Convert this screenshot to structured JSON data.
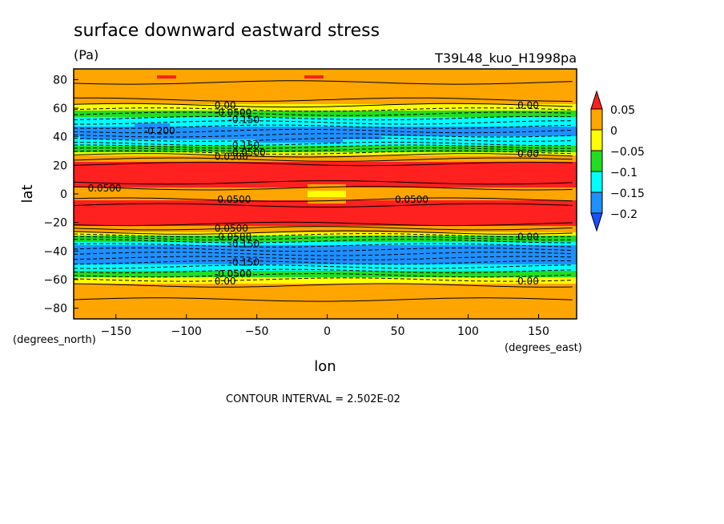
{
  "chart_data": {
    "type": "heatmap",
    "title": "surface downward eastward stress",
    "units": "(Pa)",
    "run_label": "T39L48_kuo_H1998pa",
    "xlabel": "lon",
    "ylabel": "lat",
    "x_units_note": "(degrees_east)",
    "y_units_note": "(degrees_north)",
    "footer": "CONTOUR INTERVAL = 2.502E-02",
    "xlim": [
      -180,
      177
    ],
    "ylim": [
      -87.5,
      87.5
    ],
    "x_ticks": [
      -150,
      -100,
      -50,
      0,
      50,
      100,
      150
    ],
    "x_tick_labels": [
      "−150",
      "−100",
      "−50",
      "0",
      "50",
      "100",
      "150"
    ],
    "y_ticks": [
      -80,
      -60,
      -40,
      -20,
      0,
      20,
      40,
      60,
      80
    ],
    "y_tick_labels": [
      "−80",
      "−60",
      "−40",
      "−20",
      "0",
      "20",
      "40",
      "60",
      "80"
    ],
    "colorbar": {
      "levels": [
        0.05,
        0,
        -0.05,
        -0.1,
        -0.15,
        -0.2
      ],
      "labels": [
        "0.05",
        "0",
        "−0.05",
        "−0.1",
        "−0.15",
        "−0.2"
      ],
      "colors": [
        "#ff2020",
        "#ffa500",
        "#ffff00",
        "#22dd22",
        "#00ffff",
        "#1e90ff",
        "#1a50ff"
      ]
    },
    "zonal_profile": {
      "lat": [
        -87.5,
        -62,
        -58,
        -55,
        -52,
        -47,
        -42,
        -37,
        -33,
        -30,
        -27,
        -24,
        -20,
        -15,
        -10,
        -6,
        -3,
        0,
        3,
        6,
        10,
        15,
        20,
        24,
        27,
        30,
        33,
        37,
        42,
        47,
        52,
        55,
        58,
        62,
        87.5
      ],
      "value": [
        0.01,
        0.0,
        -0.05,
        -0.09,
        -0.13,
        -0.16,
        -0.17,
        -0.15,
        -0.1,
        -0.05,
        0.0,
        0.03,
        0.07,
        0.08,
        0.07,
        0.06,
        0.04,
        0.03,
        0.04,
        0.06,
        0.07,
        0.08,
        0.07,
        0.03,
        0.0,
        -0.05,
        -0.1,
        -0.14,
        -0.16,
        -0.15,
        -0.12,
        -0.08,
        -0.04,
        0.0,
        0.01
      ]
    },
    "features": [
      {
        "lon": 0,
        "lat": 0,
        "value": -0.02
      },
      {
        "lon": -20,
        "lat": 40,
        "value": -0.2
      },
      {
        "lon": -125,
        "lat": 43,
        "value": -0.2
      },
      {
        "lon": -90,
        "lat": -42,
        "value": -0.2
      },
      {
        "lon": -115,
        "lat": 82,
        "value": 0.06
      },
      {
        "lon": -10,
        "lat": 82,
        "value": 0.06
      }
    ],
    "contour_labels": [
      {
        "lon": -80,
        "lat": 62,
        "text": "0.00"
      },
      {
        "lon": -80,
        "lat": 57,
        "text": "-0.0500"
      },
      {
        "lon": -70,
        "lat": 52,
        "text": "-0.150"
      },
      {
        "lon": -130,
        "lat": 44,
        "text": "-0.200"
      },
      {
        "lon": -70,
        "lat": 34,
        "text": "-0.150"
      },
      {
        "lon": -70,
        "lat": 29,
        "text": "-0.0500"
      },
      {
        "lon": -80,
        "lat": 26,
        "text": "0.0500"
      },
      {
        "lon": 135,
        "lat": 62,
        "text": "0.00"
      },
      {
        "lon": 135,
        "lat": 28,
        "text": "0.00"
      },
      {
        "lon": -170,
        "lat": 4,
        "text": "0.0500"
      },
      {
        "lon": -78,
        "lat": -4,
        "text": "0.0500"
      },
      {
        "lon": 48,
        "lat": -4,
        "text": "0.0500"
      },
      {
        "lon": -80,
        "lat": -24,
        "text": "0.0500"
      },
      {
        "lon": -80,
        "lat": -30,
        "text": "-0.0500"
      },
      {
        "lon": -70,
        "lat": -35,
        "text": "-0.150"
      },
      {
        "lon": -70,
        "lat": -48,
        "text": "-0.150"
      },
      {
        "lon": -80,
        "lat": -56,
        "text": "-0.0500"
      },
      {
        "lon": -80,
        "lat": -61,
        "text": "0.00"
      },
      {
        "lon": 135,
        "lat": -30,
        "text": "0.00"
      },
      {
        "lon": 135,
        "lat": -61,
        "text": "0.00"
      }
    ]
  }
}
